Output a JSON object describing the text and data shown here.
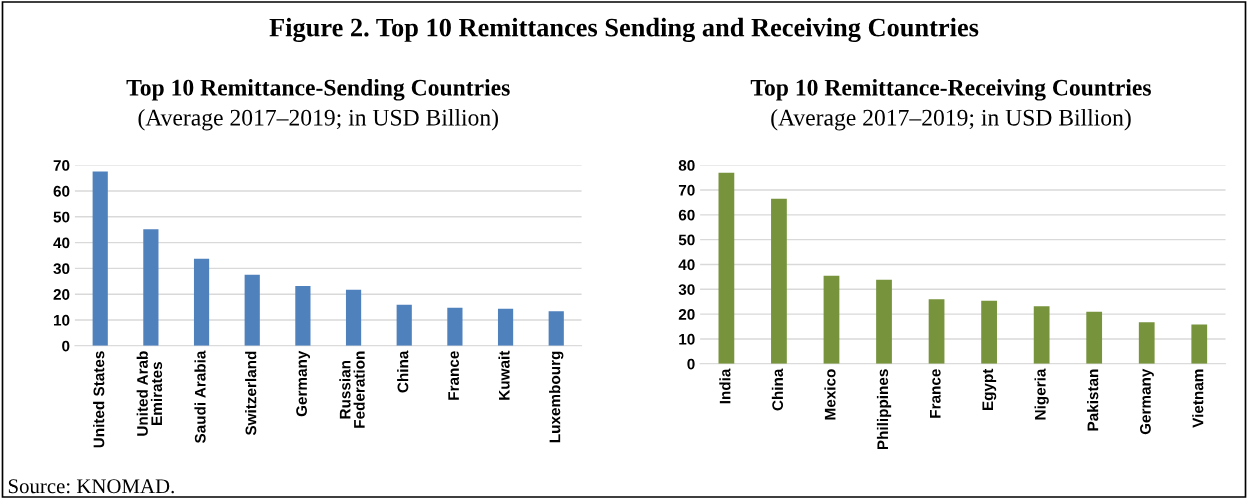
{
  "chart_data": [
    {
      "type": "bar",
      "title": "Top 10 Remittance-Sending Countries",
      "subtitle": "(Average 2017–2019; in USD Billion)",
      "annotations": [
        "Figure 2. Top 10 Remittances Sending and Receiving Countries"
      ],
      "categories": [
        "United States",
        "United Arab\nEmirates",
        "Saudi Arabia",
        "Switzerland",
        "Germany",
        "Russian\nFederation",
        "China",
        "France",
        "Kuwait",
        "Luxembourg"
      ],
      "values": [
        67.5,
        45.2,
        33.7,
        27.5,
        23.2,
        21.7,
        15.9,
        14.7,
        14.4,
        13.4
      ],
      "color": "#4f81bd",
      "ylim": [
        0,
        70
      ],
      "yticks": [
        0,
        10,
        20,
        30,
        40,
        50,
        60,
        70
      ],
      "grid": "y",
      "legend": false
    },
    {
      "type": "bar",
      "title": "Top 10 Remittance-Receiving Countries",
      "subtitle": "(Average 2017–2019; in USD Billion)",
      "annotations": [
        "Source: KNOMAD."
      ],
      "categories": [
        "India",
        "China",
        "Mexico",
        "Philippines",
        "France",
        "Egypt",
        "Nigeria",
        "Pakistan",
        "Germany",
        "Vietnam"
      ],
      "values": [
        76.9,
        66.5,
        35.5,
        33.8,
        26.0,
        25.4,
        23.2,
        21.0,
        16.7,
        15.8
      ],
      "color": "#77933c",
      "ylim": [
        0,
        80
      ],
      "yticks": [
        0,
        10,
        20,
        30,
        40,
        50,
        60,
        70,
        80
      ],
      "grid": "y",
      "legend": false
    }
  ]
}
